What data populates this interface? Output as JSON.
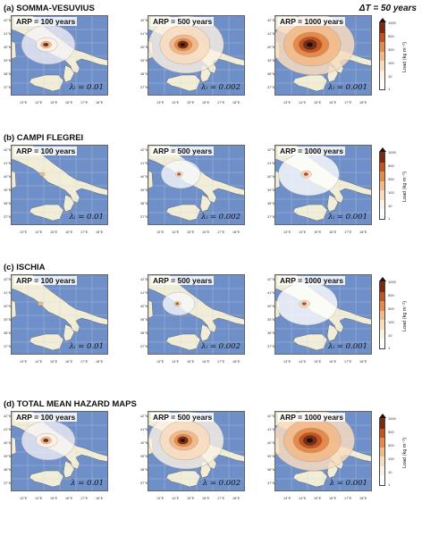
{
  "delta_t": "ΔT = 50 years",
  "sections": [
    {
      "title": "(a) SOMMA-VESUVIUS",
      "panels": [
        {
          "arp": "ARP = 100 years",
          "lambda": "λᵢ = 0.01"
        },
        {
          "arp": "ARP = 500 years",
          "lambda": "λᵢ = 0.002"
        },
        {
          "arp": "ARP = 1000 years",
          "lambda": "λᵢ = 0.001"
        }
      ]
    },
    {
      "title": "(b) CAMPI FLEGREI",
      "panels": [
        {
          "arp": "ARP = 100 years",
          "lambda": "λᵢ = 0.01"
        },
        {
          "arp": "ARP = 500 years",
          "lambda": "λᵢ = 0.002"
        },
        {
          "arp": "ARP = 1000 years",
          "lambda": "λᵢ = 0.001"
        }
      ]
    },
    {
      "title": "(c) ISCHIA",
      "panels": [
        {
          "arp": "ARP = 100 years",
          "lambda": "λᵢ = 0.01"
        },
        {
          "arp": "ARP = 500 years",
          "lambda": "λᵢ = 0.002"
        },
        {
          "arp": "ARP = 1000 years",
          "lambda": "λᵢ = 0.001"
        }
      ]
    },
    {
      "title": "(d) TOTAL MEAN  HAZARD MAPS",
      "panels": [
        {
          "arp": "ARP = 100 years",
          "lambda": "λ = 0.01"
        },
        {
          "arp": "ARP = 500 years",
          "lambda": "λ = 0.002"
        },
        {
          "arp": "ARP = 1000 years",
          "lambda": "λ = 0.001"
        }
      ]
    }
  ],
  "lat_ticks": [
    "42°N",
    "41°N",
    "40°N",
    "39°N",
    "38°N",
    "37°N"
  ],
  "lon_ticks": [
    "13°E",
    "14°E",
    "15°E",
    "16°E",
    "17°E",
    "18°E"
  ],
  "colorbar": {
    "label": "Load (kg m⁻²)",
    "ticks": [
      "1000",
      "500",
      "300",
      "100",
      "10",
      "1"
    ],
    "colors": [
      "#2a0d05",
      "#7a2a10",
      "#c2521e",
      "#e68a4a",
      "#f2b98a",
      "#f8dcc0",
      "#fcf1e4",
      "#ffffff"
    ]
  },
  "colors": {
    "sea": "#6f8fc8",
    "land": "#f1edd6",
    "grid": "#c9d6ea"
  }
}
